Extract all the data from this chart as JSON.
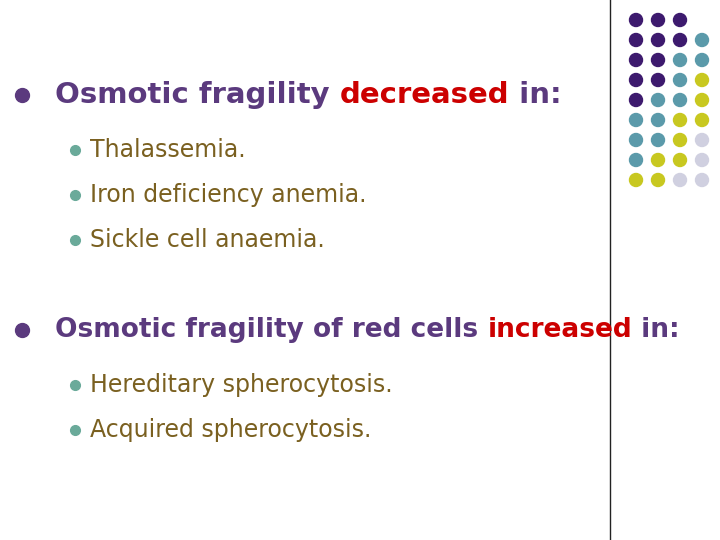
{
  "bg_color": "#ffffff",
  "main_bullet_color": "#5b3a7e",
  "highlight_color": "#cc0000",
  "sub_bullet_color": "#6aaa9a",
  "text_color": "#5b3a7e",
  "sub_text_color": "#7a6020",
  "line_color": "#222222",
  "s1_part1": "Osmotic fragility ",
  "s1_part2": "decreased",
  "s1_part3": " in:",
  "s1_subitems": [
    "Thalassemia.",
    "Iron deficiency anemia.",
    "Sickle cell anaemia."
  ],
  "s2_part1": "Osmotic fragility of red cells ",
  "s2_part2": "increased",
  "s2_part3": " in:",
  "s2_subitems": [
    "Hereditary spherocytosis.",
    "Acquired spherocytosis."
  ],
  "dot_grid": {
    "colors": [
      [
        "#3d1a6e",
        "#3d1a6e",
        "#3d1a6e",
        "#000000"
      ],
      [
        "#3d1a6e",
        "#3d1a6e",
        "#3d1a6e",
        "#5b9aaa"
      ],
      [
        "#3d1a6e",
        "#3d1a6e",
        "#5b9aaa",
        "#5b9aaa"
      ],
      [
        "#3d1a6e",
        "#3d1a6e",
        "#5b9aaa",
        "#c8c820"
      ],
      [
        "#3d1a6e",
        "#5b9aaa",
        "#5b9aaa",
        "#c8c820"
      ],
      [
        "#5b9aaa",
        "#5b9aaa",
        "#c8c820",
        "#c8c820"
      ],
      [
        "#5b9aaa",
        "#5b9aaa",
        "#c8c820",
        "#d0d0e0"
      ],
      [
        "#5b9aaa",
        "#c8c820",
        "#c8c820",
        "#d0d0e0"
      ],
      [
        "#c8c820",
        "#c8c820",
        "#d0d0e0",
        "#d0d0e0"
      ]
    ]
  }
}
